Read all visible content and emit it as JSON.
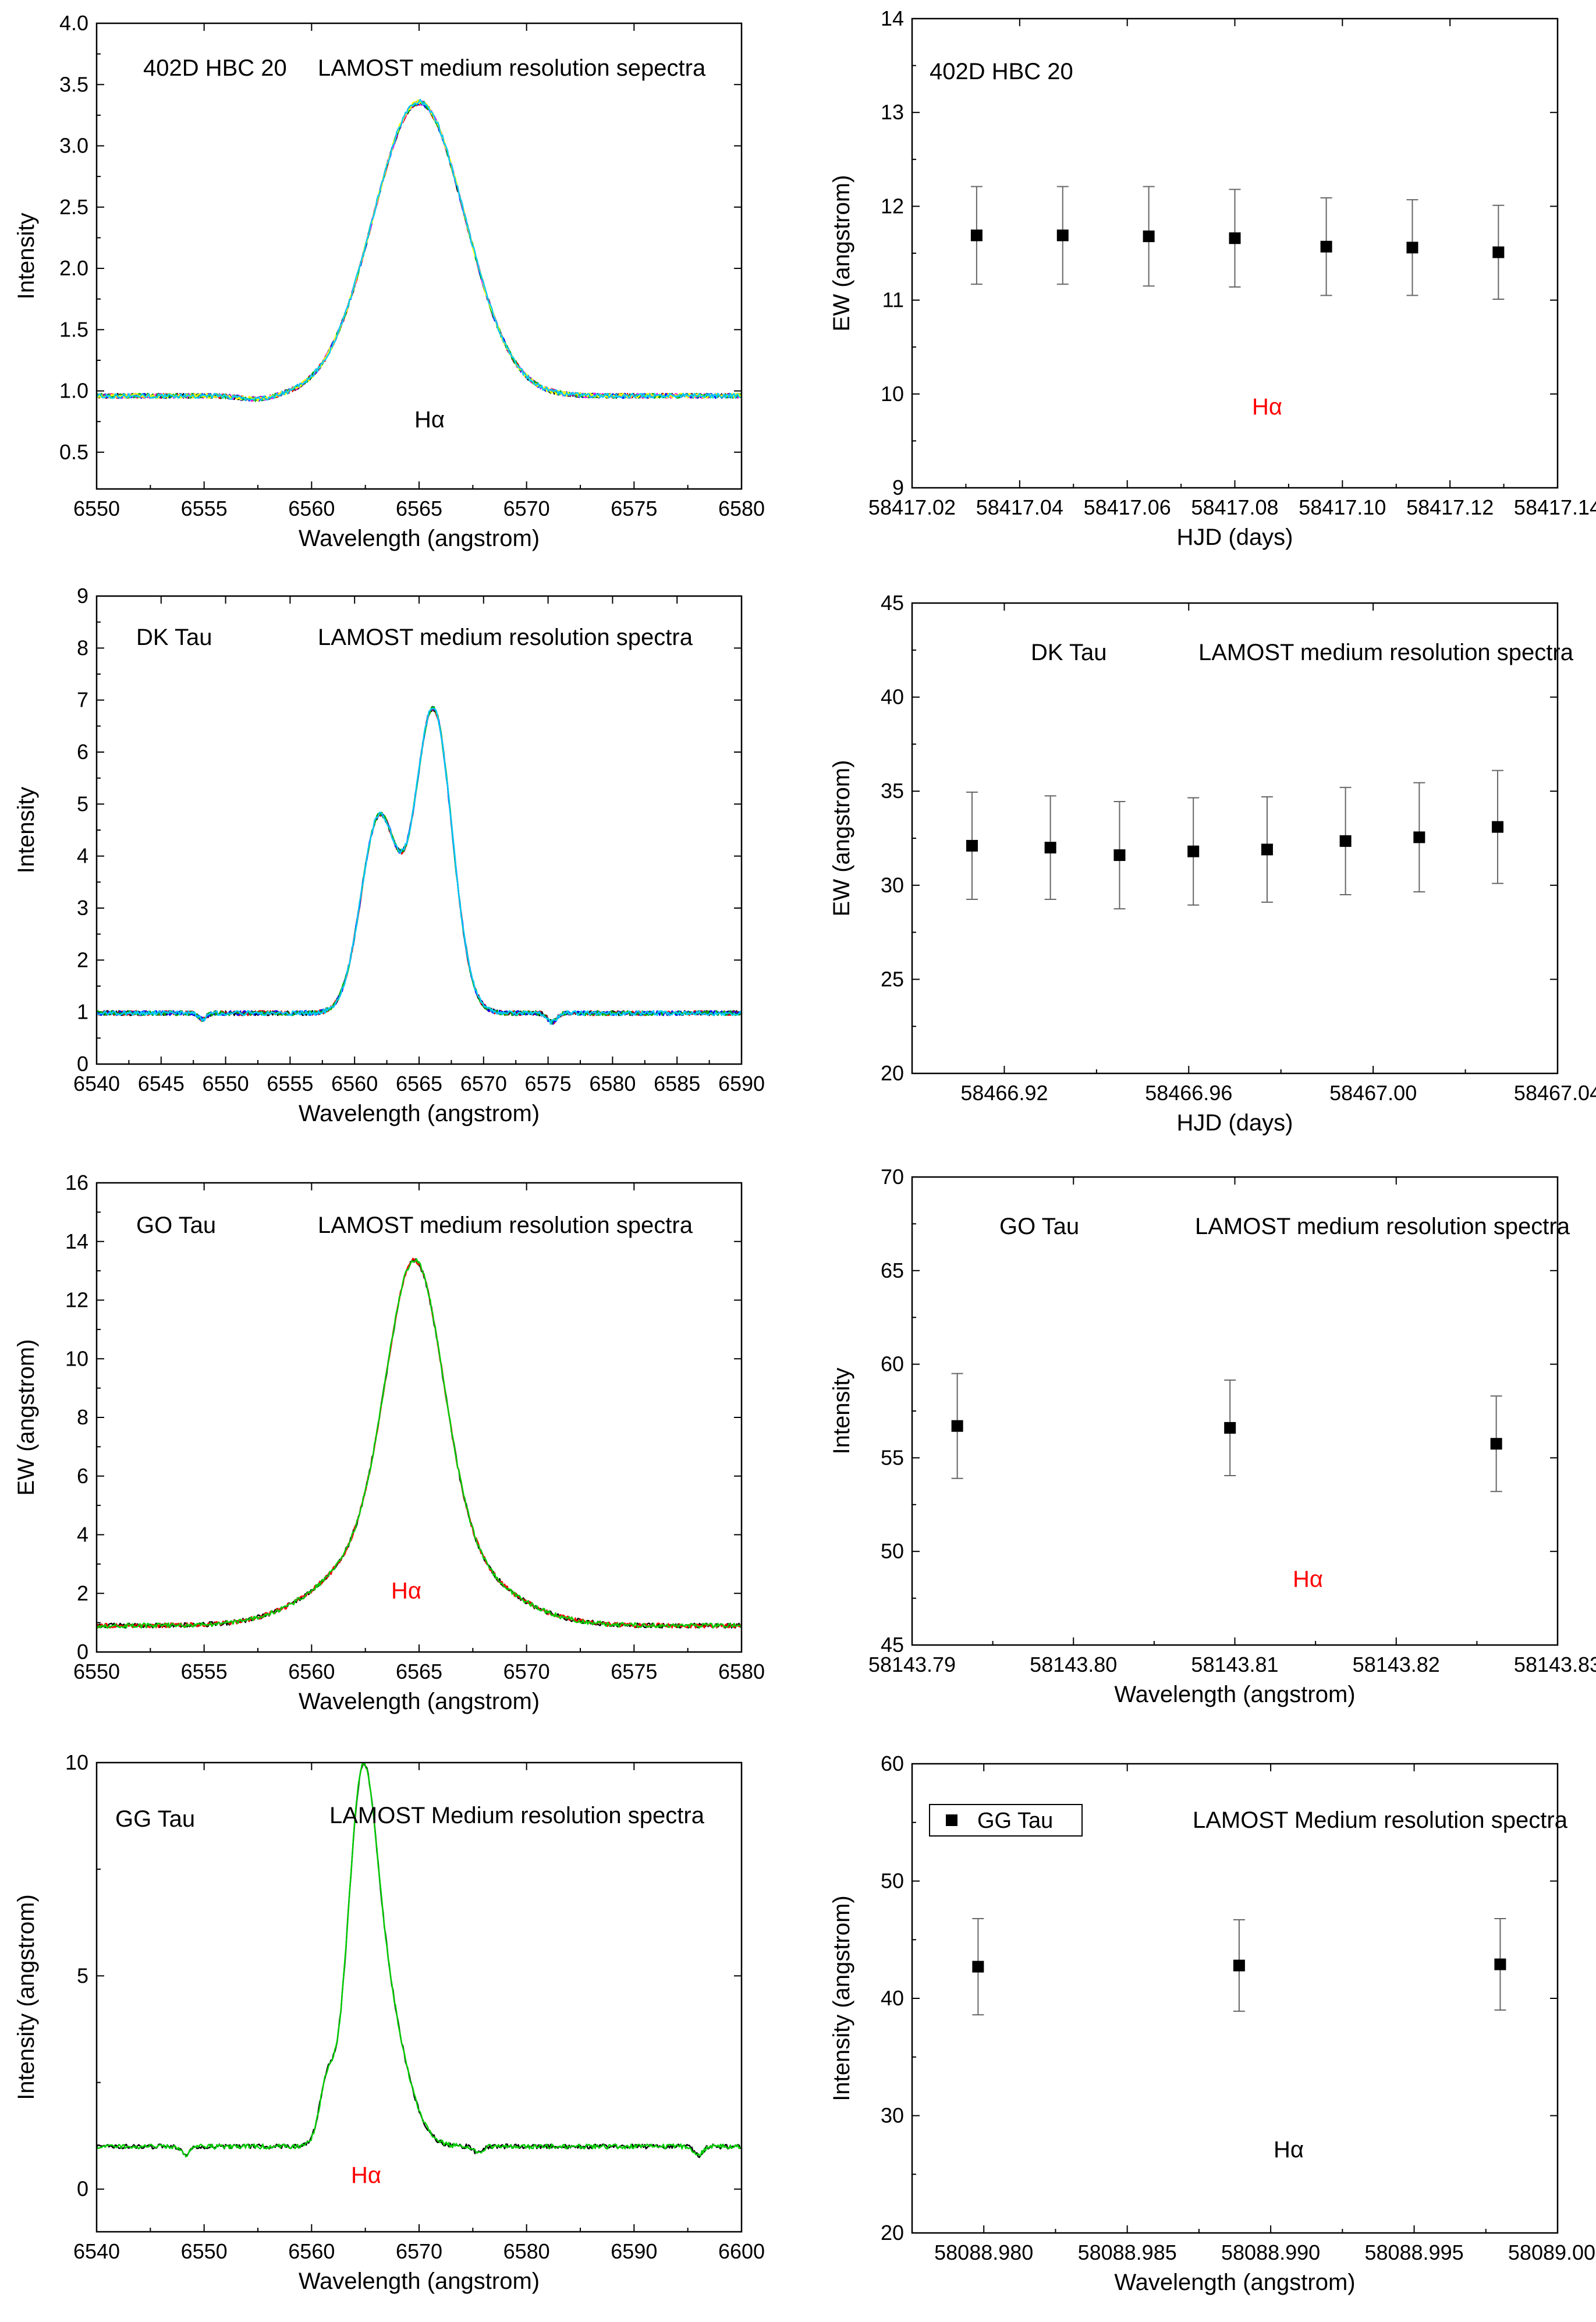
{
  "chart_data": [
    {
      "id": "p1",
      "type": "line",
      "title": "402D HBC 20",
      "subtitle": "LAMOST medium resolution sepectra",
      "annotation": "Hα",
      "annotation_color": "#000000",
      "xlabel": "Wavelength (angstrom)",
      "ylabel": "Intensity",
      "xlim": [
        6550,
        6580
      ],
      "ylim": [
        0.2,
        4.0
      ],
      "xticks": [
        "6550",
        "6555",
        "6560",
        "6565",
        "6570",
        "6575",
        "6580"
      ],
      "yticks": [
        "0.5",
        "1.0",
        "1.5",
        "2.0",
        "2.5",
        "3.0",
        "3.5",
        "4.0"
      ],
      "line_shape": {
        "continuum": 0.96,
        "lines": [
          {
            "center": 6565.0,
            "height": 2.37,
            "width": 2.15
          }
        ],
        "absorptions": [
          {
            "center": 6557.5,
            "depth": 0.03,
            "width": 0.8
          }
        ]
      },
      "series": [
        {
          "name": "spectrum 1",
          "color": "#000000"
        },
        {
          "name": "spectrum 2",
          "color": "#ff0000"
        },
        {
          "name": "spectrum 3",
          "color": "#0000ff"
        },
        {
          "name": "spectrum 4",
          "color": "#ff00ff"
        },
        {
          "name": "spectrum 5",
          "color": "#00b000"
        },
        {
          "name": "spectrum 6",
          "color": "#ffff00"
        },
        {
          "name": "spectrum 7",
          "color": "#00c8ff"
        }
      ]
    },
    {
      "id": "p2",
      "type": "scatter",
      "title": "402D HBC 20",
      "subtitle": "",
      "annotation": "Hα",
      "annotation_color": "#ff0000",
      "xlabel": "HJD (days)",
      "ylabel": "EW (angstrom)",
      "xlim": [
        58417.02,
        58417.14
      ],
      "ylim": [
        9,
        14
      ],
      "xticks": [
        "58417.02",
        "58417.04",
        "58417.06",
        "58417.08",
        "58417.10",
        "58417.12",
        "58417.14"
      ],
      "yticks": [
        "9",
        "10",
        "11",
        "12",
        "13",
        "14"
      ],
      "x": [
        58417.032,
        58417.048,
        58417.064,
        58417.08,
        58417.097,
        58417.113,
        58417.129
      ],
      "y": [
        11.69,
        11.69,
        11.68,
        11.66,
        11.57,
        11.56,
        11.51
      ],
      "yerr": [
        0.52,
        0.52,
        0.53,
        0.52,
        0.52,
        0.51,
        0.5
      ]
    },
    {
      "id": "p3",
      "type": "line",
      "title": "DK Tau",
      "subtitle": "LAMOST medium resolution spectra",
      "annotation": "",
      "annotation_color": "#000000",
      "xlabel": "Wavelength (angstrom)",
      "ylabel": "Intensity",
      "xlim": [
        6540,
        6590
      ],
      "ylim": [
        0,
        9
      ],
      "xticks": [
        "6540",
        "6545",
        "6550",
        "6555",
        "6560",
        "6565",
        "6570",
        "6575",
        "6580",
        "6585",
        "6590"
      ],
      "yticks": [
        "0",
        "1",
        "2",
        "3",
        "4",
        "5",
        "6",
        "7",
        "8",
        "9"
      ],
      "line_shape": {
        "continuum": 0.98,
        "lines": [
          {
            "center": 6561.9,
            "height": 3.75,
            "width": 1.4
          },
          {
            "center": 6566.1,
            "height": 5.85,
            "width": 1.45
          }
        ],
        "absorptions": [
          {
            "center": 6548.2,
            "depth": 0.12,
            "width": 0.3
          },
          {
            "center": 6575.3,
            "depth": 0.18,
            "width": 0.35
          }
        ]
      },
      "series": [
        {
          "name": "spectrum 1",
          "color": "#000000"
        },
        {
          "name": "spectrum 2",
          "color": "#ff0000"
        },
        {
          "name": "spectrum 3",
          "color": "#0000ff"
        },
        {
          "name": "spectrum 4",
          "color": "#00b000"
        },
        {
          "name": "spectrum 5",
          "color": "#00c8ff"
        }
      ]
    },
    {
      "id": "p4",
      "type": "scatter",
      "title": "DK Tau",
      "subtitle": "LAMOST medium resolution spectra",
      "annotation": "",
      "annotation_color": "#000000",
      "xlabel": "HJD (days)",
      "ylabel": "EW (angstrom)",
      "xlim": [
        58466.9,
        58467.04
      ],
      "ylim": [
        20,
        45
      ],
      "xticks": [
        "58466.92",
        "58466.96",
        "58467.00",
        "58467.04"
      ],
      "xtick_values": [
        58466.92,
        58466.96,
        58467.0,
        58467.04
      ],
      "yticks": [
        "20",
        "25",
        "30",
        "35",
        "40",
        "45"
      ],
      "x": [
        58466.913,
        58466.93,
        58466.945,
        58466.961,
        58466.977,
        58466.994,
        58467.01,
        58467.027
      ],
      "y": [
        32.1,
        32.0,
        31.6,
        31.8,
        31.9,
        32.35,
        32.55,
        33.1
      ],
      "yerr": [
        2.85,
        2.75,
        2.85,
        2.85,
        2.8,
        2.85,
        2.9,
        3.0
      ]
    },
    {
      "id": "p5",
      "type": "line",
      "title": "GO Tau",
      "subtitle": "LAMOST medium resolution spectra",
      "annotation": "Hα",
      "annotation_color": "#ff0000",
      "xlabel": "Wavelength (angstrom)",
      "ylabel": "EW (angstrom)",
      "xlim": [
        6550,
        6580
      ],
      "ylim": [
        0,
        16
      ],
      "xticks": [
        "6550",
        "6555",
        "6560",
        "6565",
        "6570",
        "6575",
        "6580"
      ],
      "yticks": [
        "0",
        "2",
        "4",
        "6",
        "8",
        "10",
        "12",
        "14",
        "16"
      ],
      "line_shape": {
        "continuum": 0.9,
        "lines": [
          {
            "center": 6564.8,
            "height": 9.3,
            "width": 1.3
          },
          {
            "center": 6564.6,
            "height": 3.4,
            "width": 3.2
          }
        ]
      },
      "series": [
        {
          "name": "spectrum 1",
          "color": "#000000"
        },
        {
          "name": "spectrum 2",
          "color": "#ff0000"
        },
        {
          "name": "spectrum 3",
          "color": "#00d000"
        }
      ]
    },
    {
      "id": "p6",
      "type": "scatter",
      "title": "GO Tau",
      "subtitle": "LAMOST medium resolution spectra",
      "annotation": "Hα",
      "annotation_color": "#ff0000",
      "xlabel": "Wavelength (angstrom)",
      "ylabel": "Intensity",
      "xlim": [
        58143.79,
        58143.83
      ],
      "ylim": [
        45,
        70
      ],
      "xticks": [
        "58143.79",
        "58143.80",
        "58143.81",
        "58143.82",
        "58143.83"
      ],
      "yticks": [
        "45",
        "50",
        "55",
        "60",
        "65",
        "70"
      ],
      "x": [
        58143.7928,
        58143.8097,
        58143.8262
      ],
      "y": [
        56.7,
        56.6,
        55.75
      ],
      "yerr": [
        2.8,
        2.55,
        2.55
      ]
    },
    {
      "id": "p7",
      "type": "line",
      "title": "GG Tau",
      "subtitle": "LAMOST Medium resolution spectra",
      "annotation": "Hα",
      "annotation_color": "#ff0000",
      "xlabel": "Wavelength (angstrom)",
      "ylabel": "Intensity (angstrom)",
      "xlim": [
        6540,
        6600
      ],
      "ylim": [
        -1,
        10
      ],
      "xticks": [
        "6540",
        "6550",
        "6560",
        "6570",
        "6580",
        "6590",
        "6600"
      ],
      "yticks": [
        "0",
        "5",
        "10"
      ],
      "line_shape": {
        "continuum": 1.0,
        "lines": [
          {
            "center": 6564.6,
            "height": 6.1,
            "width": 1.3
          },
          {
            "center": 6566.4,
            "height": 3.6,
            "width": 2.1
          },
          {
            "center": 6561.4,
            "height": 1.2,
            "width": 0.7
          }
        ],
        "absorptions": [
          {
            "center": 6548.3,
            "depth": 0.2,
            "width": 0.35
          },
          {
            "center": 6575.5,
            "depth": 0.15,
            "width": 0.4
          },
          {
            "center": 6596.0,
            "depth": 0.2,
            "width": 0.4
          }
        ]
      },
      "series": [
        {
          "name": "spectrum 1",
          "color": "#000000"
        },
        {
          "name": "spectrum 2",
          "color": "#00d000"
        }
      ]
    },
    {
      "id": "p8",
      "type": "scatter",
      "title": "",
      "subtitle": "LAMOST Medium resolution spectra",
      "annotation": "Hα",
      "annotation_color": "#000000",
      "legend": "GG Tau",
      "xlabel": "Wavelength (angstrom)",
      "ylabel": "Intensity (angstrom)",
      "xlim": [
        58088.9775,
        58089.0
      ],
      "ylim": [
        20,
        60
      ],
      "xticks": [
        "58088.980",
        "58088.985",
        "58088.990",
        "58088.995",
        "58089.000"
      ],
      "xtick_values": [
        58088.98,
        58088.985,
        58088.99,
        58088.995,
        58089.0
      ],
      "yticks": [
        "20",
        "30",
        "40",
        "50",
        "60"
      ],
      "x": [
        58088.9798,
        58088.9889,
        58088.998
      ],
      "y": [
        42.7,
        42.8,
        42.9
      ],
      "yerr": [
        4.1,
        3.9,
        3.9
      ]
    }
  ]
}
